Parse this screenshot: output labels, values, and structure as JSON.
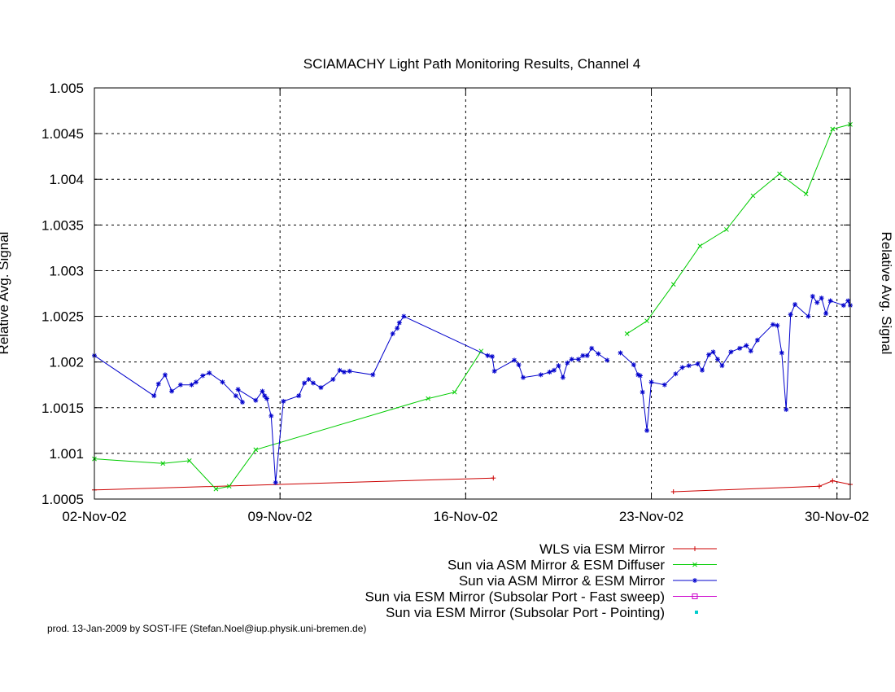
{
  "chart_data": {
    "type": "line",
    "title": "SCIAMACHY Light Path Monitoring Results, Channel 4",
    "ylabel": "Relative Avg. Signal",
    "y2label": "Relative Avg. Signal",
    "xlim": [
      "2002-11-02",
      "2002-11-30T12:00"
    ],
    "ylim": [
      1.0005,
      1.005
    ],
    "x_ticks": [
      {
        "date": "2002-11-02",
        "label": "02-Nov-02"
      },
      {
        "date": "2002-11-09",
        "label": "09-Nov-02"
      },
      {
        "date": "2002-11-16",
        "label": "16-Nov-02"
      },
      {
        "date": "2002-11-23",
        "label": "23-Nov-02"
      },
      {
        "date": "2002-11-30",
        "label": "30-Nov-02"
      }
    ],
    "y_ticks": [
      "1.0005",
      "1.001",
      "1.0015",
      "1.002",
      "1.0025",
      "1.003",
      "1.0035",
      "1.004",
      "1.0045",
      "1.005"
    ],
    "grid": true,
    "legend_position": "bottom-right",
    "series": [
      {
        "name": "WLS via ESM Mirror",
        "color": "#cc0000",
        "marker": "plus",
        "segments": [
          [
            [
              "2002-11-02",
              1.0006
            ],
            [
              "2002-11-17T01:00",
              1.00073
            ]
          ],
          [
            [
              "2002-11-23T20:00",
              1.00058
            ],
            [
              "2002-11-29T08:00",
              1.00064
            ],
            [
              "2002-11-29T20:00",
              1.0007
            ],
            [
              "2002-11-30T12:00",
              1.00066
            ]
          ]
        ]
      },
      {
        "name": "Sun via ASM Mirror & ESM Diffuser",
        "color": "#00cc00",
        "marker": "cross",
        "segments": [
          [
            [
              "2002-11-02",
              1.00094
            ],
            [
              "2002-11-04T14:00",
              1.00089
            ],
            [
              "2002-11-05T14:00",
              1.00092
            ],
            [
              "2002-11-06T14:00",
              1.00061
            ],
            [
              "2002-11-07T02:00",
              1.00064
            ],
            [
              "2002-11-08T02:00",
              1.00104
            ],
            [
              "2002-11-14T14:00",
              1.0016
            ],
            [
              "2002-11-15T14:00",
              1.00167
            ],
            [
              "2002-11-16T14:00",
              1.00212
            ]
          ],
          [
            [
              "2002-11-22T02:00",
              1.00231
            ],
            [
              "2002-11-22T20:00",
              1.00245
            ],
            [
              "2002-11-23T20:00",
              1.00285
            ],
            [
              "2002-11-24T20:00",
              1.00327
            ],
            [
              "2002-11-25T20:00",
              1.00345
            ],
            [
              "2002-11-26T20:00",
              1.00382
            ],
            [
              "2002-11-27T20:00",
              1.00406
            ],
            [
              "2002-11-28T20:00",
              1.00384
            ],
            [
              "2002-11-29T20:00",
              1.00455
            ],
            [
              "2002-11-30T12:00",
              1.0046
            ]
          ]
        ]
      },
      {
        "name": "Sun via ASM Mirror & ESM Mirror",
        "color": "#0000cc",
        "marker": "star",
        "segments": [
          [
            [
              "2002-11-02",
              1.00207
            ],
            [
              "2002-11-04T06:00",
              1.00163
            ],
            [
              "2002-11-04T10:00",
              1.00176
            ],
            [
              "2002-11-04T16:00",
              1.00186
            ],
            [
              "2002-11-04T22:00",
              1.00168
            ],
            [
              "2002-11-05T06:00",
              1.00175
            ],
            [
              "2002-11-05T16:00",
              1.00175
            ],
            [
              "2002-11-05T20:00",
              1.00178
            ],
            [
              "2002-11-06T02:00",
              1.00185
            ],
            [
              "2002-11-06T08:00",
              1.00188
            ],
            [
              "2002-11-06T20:00",
              1.00178
            ],
            [
              "2002-11-07T08:00",
              1.00163
            ],
            [
              "2002-11-07T14:00",
              1.00156
            ],
            [
              "2002-11-07T10:00",
              1.0017
            ],
            [
              "2002-11-08T02:00",
              1.00158
            ],
            [
              "2002-11-08T08:00",
              1.00168
            ],
            [
              "2002-11-08T10:00",
              1.00163
            ],
            [
              "2002-11-08T12:00",
              1.0016
            ],
            [
              "2002-11-08T16:00",
              1.00141
            ],
            [
              "2002-11-08T20:00",
              1.00068
            ],
            [
              "2002-11-09T03:00",
              1.00157
            ],
            [
              "2002-11-09T17:00",
              1.00163
            ],
            [
              "2002-11-09T22:00",
              1.00177
            ],
            [
              "2002-11-10T02:00",
              1.00181
            ],
            [
              "2002-11-10T06:00",
              1.00177
            ],
            [
              "2002-11-10T13:00",
              1.00172
            ],
            [
              "2002-11-11T00:00",
              1.00181
            ],
            [
              "2002-11-11T06:00",
              1.00191
            ],
            [
              "2002-11-11T10:00",
              1.00189
            ],
            [
              "2002-11-11T15:00",
              1.0019
            ],
            [
              "2002-11-12T12:00",
              1.00186
            ],
            [
              "2002-11-13T06:00",
              1.00231
            ],
            [
              "2002-11-13T10:00",
              1.00237
            ],
            [
              "2002-11-13T12:00",
              1.00243
            ],
            [
              "2002-11-13T16:00",
              1.0025
            ],
            [
              "2002-11-16T20:00",
              1.00207
            ],
            [
              "2002-11-17T00:00",
              1.00206
            ],
            [
              "2002-11-17T02:00",
              1.0019
            ],
            [
              "2002-11-17T20:00",
              1.00202
            ],
            [
              "2002-11-18T00:00",
              1.00197
            ],
            [
              "2002-11-18T04:00",
              1.00183
            ],
            [
              "2002-11-18T20:00",
              1.00186
            ],
            [
              "2002-11-19T04:00",
              1.00189
            ],
            [
              "2002-11-19T08:00",
              1.00191
            ],
            [
              "2002-11-19T12:00",
              1.00196
            ],
            [
              "2002-11-19T16:00",
              1.00183
            ],
            [
              "2002-11-19T20:00",
              1.00199
            ],
            [
              "2002-11-20T00:00",
              1.00203
            ],
            [
              "2002-11-20T06:00",
              1.00203
            ],
            [
              "2002-11-20T10:00",
              1.00207
            ],
            [
              "2002-11-20T14:00",
              1.00207
            ],
            [
              "2002-11-20T18:00",
              1.00215
            ],
            [
              "2002-11-21T00:00",
              1.00209
            ],
            [
              "2002-11-21T08:00",
              1.00202
            ]
          ],
          [
            [
              "2002-11-21T20:00",
              1.0021
            ],
            [
              "2002-11-22T08:00",
              1.00197
            ],
            [
              "2002-11-22T12:00",
              1.00186
            ],
            [
              "2002-11-22T14:00",
              1.00185
            ],
            [
              "2002-11-22T16:00",
              1.00167
            ],
            [
              "2002-11-22T20:00",
              1.00125
            ],
            [
              "2002-11-23T00:00",
              1.00178
            ],
            [
              "2002-11-23T12:00",
              1.00175
            ],
            [
              "2002-11-23T22:00",
              1.00187
            ],
            [
              "2002-11-24T04:00",
              1.00194
            ],
            [
              "2002-11-24T10:00",
              1.00196
            ],
            [
              "2002-11-24T18:00",
              1.00198
            ],
            [
              "2002-11-24T22:00",
              1.00191
            ],
            [
              "2002-11-25T04:00",
              1.00208
            ],
            [
              "2002-11-25T08:00",
              1.00211
            ],
            [
              "2002-11-25T12:00",
              1.00203
            ],
            [
              "2002-11-25T16:00",
              1.00196
            ],
            [
              "2002-11-26T00:00",
              1.00211
            ],
            [
              "2002-11-26T08:00",
              1.00215
            ],
            [
              "2002-11-26T14:00",
              1.00218
            ],
            [
              "2002-11-26T18:00",
              1.00212
            ],
            [
              "2002-11-27T00:00",
              1.00224
            ],
            [
              "2002-11-27T14:00",
              1.00241
            ],
            [
              "2002-11-27T18:00",
              1.0024
            ],
            [
              "2002-11-27T22:00",
              1.0021
            ],
            [
              "2002-11-28T02:00",
              1.00148
            ],
            [
              "2002-11-28T06:00",
              1.00252
            ],
            [
              "2002-11-28T10:00",
              1.00263
            ],
            [
              "2002-11-28T22:00",
              1.0025
            ],
            [
              "2002-11-29T02:00",
              1.00272
            ],
            [
              "2002-11-29T06:00",
              1.00265
            ],
            [
              "2002-11-29T10:00",
              1.0027
            ],
            [
              "2002-11-29T14:00",
              1.00253
            ],
            [
              "2002-11-29T18:00",
              1.00267
            ],
            [
              "2002-11-30T06:00",
              1.00262
            ],
            [
              "2002-11-30T10:00",
              1.00267
            ],
            [
              "2002-11-30T12:00",
              1.00262
            ]
          ]
        ]
      },
      {
        "name": "Sun via ESM Mirror (Subsolar Port - Fast sweep)",
        "color": "#cc00cc",
        "marker": "square",
        "segments": []
      },
      {
        "name": "Sun via ESM Mirror (Subsolar Port - Pointing)",
        "color": "#00cccc",
        "marker": "dot",
        "segments": []
      }
    ]
  },
  "footer": "prod. 13-Jan-2009 by SOST-IFE (Stefan.Noel@iup.physik.uni-bremen.de)"
}
